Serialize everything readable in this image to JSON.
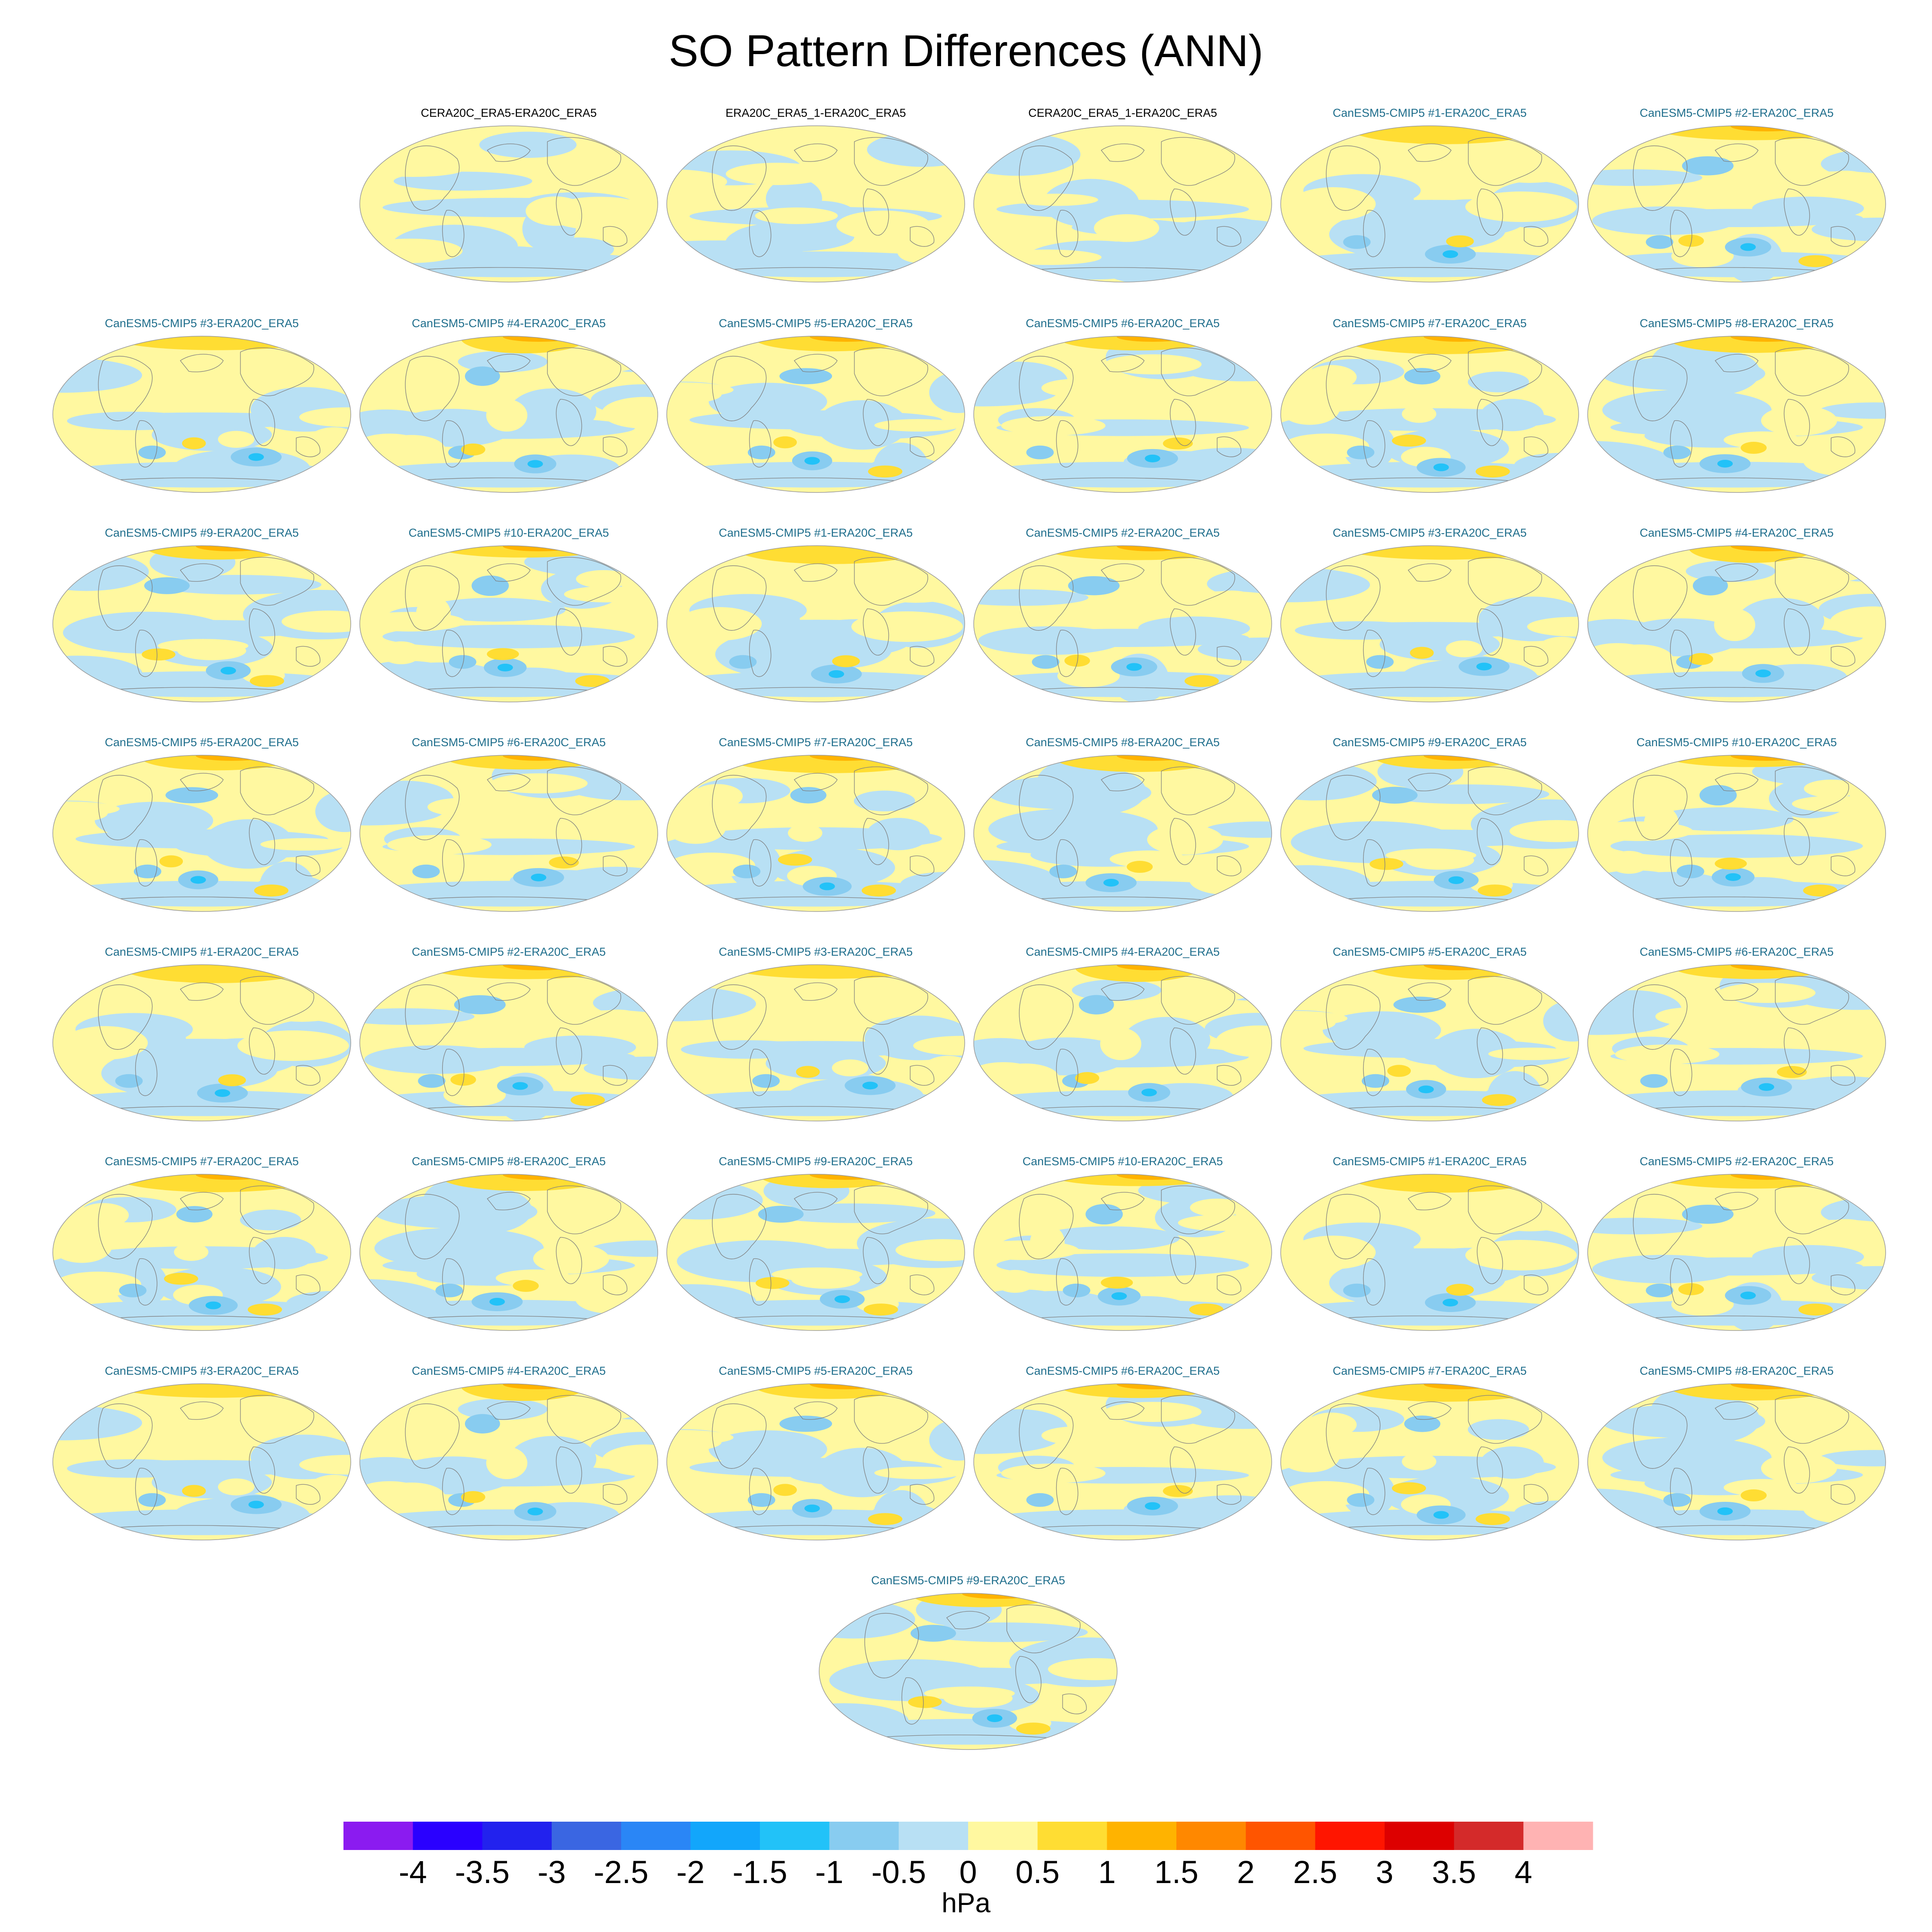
{
  "title": "SO Pattern Differences (ANN)",
  "colors": {
    "obs_title": "#000000",
    "model_title": "#1f6e8c",
    "land_outline": "#7f7f7f",
    "map_border": "#9a9a9a"
  },
  "panels": [
    {
      "title": "CERA20C_ERA5-ERA20C_ERA5",
      "kind": "obs",
      "pattern": 0
    },
    {
      "title": "ERA20C_ERA5_1-ERA20C_ERA5",
      "kind": "obs",
      "pattern": 1
    },
    {
      "title": "CERA20C_ERA5_1-ERA20C_ERA5",
      "kind": "obs",
      "pattern": 2
    },
    {
      "title": "CanESM5-CMIP5 #1-ERA20C_ERA5",
      "kind": "model",
      "pattern": 3
    },
    {
      "title": "CanESM5-CMIP5 #2-ERA20C_ERA5",
      "kind": "model",
      "pattern": 4
    },
    {
      "title": "CanESM5-CMIP5 #3-ERA20C_ERA5",
      "kind": "model",
      "pattern": 5
    },
    {
      "title": "CanESM5-CMIP5 #4-ERA20C_ERA5",
      "kind": "model",
      "pattern": 6
    },
    {
      "title": "CanESM5-CMIP5 #5-ERA20C_ERA5",
      "kind": "model",
      "pattern": 7
    },
    {
      "title": "CanESM5-CMIP5 #6-ERA20C_ERA5",
      "kind": "model",
      "pattern": 8
    },
    {
      "title": "CanESM5-CMIP5 #7-ERA20C_ERA5",
      "kind": "model",
      "pattern": 9
    },
    {
      "title": "CanESM5-CMIP5 #8-ERA20C_ERA5",
      "kind": "model",
      "pattern": 10
    },
    {
      "title": "CanESM5-CMIP5 #9-ERA20C_ERA5",
      "kind": "model",
      "pattern": 11
    },
    {
      "title": "CanESM5-CMIP5 #10-ERA20C_ERA5",
      "kind": "model",
      "pattern": 12
    },
    {
      "title": "CanESM5-CMIP5 #1-ERA20C_ERA5",
      "kind": "model",
      "pattern": 3
    },
    {
      "title": "CanESM5-CMIP5 #2-ERA20C_ERA5",
      "kind": "model",
      "pattern": 4
    },
    {
      "title": "CanESM5-CMIP5 #3-ERA20C_ERA5",
      "kind": "model",
      "pattern": 5
    },
    {
      "title": "CanESM5-CMIP5 #4-ERA20C_ERA5",
      "kind": "model",
      "pattern": 6
    },
    {
      "title": "CanESM5-CMIP5 #5-ERA20C_ERA5",
      "kind": "model",
      "pattern": 7
    },
    {
      "title": "CanESM5-CMIP5 #6-ERA20C_ERA5",
      "kind": "model",
      "pattern": 8
    },
    {
      "title": "CanESM5-CMIP5 #7-ERA20C_ERA5",
      "kind": "model",
      "pattern": 9
    },
    {
      "title": "CanESM5-CMIP5 #8-ERA20C_ERA5",
      "kind": "model",
      "pattern": 10
    },
    {
      "title": "CanESM5-CMIP5 #9-ERA20C_ERA5",
      "kind": "model",
      "pattern": 11
    },
    {
      "title": "CanESM5-CMIP5 #10-ERA20C_ERA5",
      "kind": "model",
      "pattern": 12
    },
    {
      "title": "CanESM5-CMIP5 #1-ERA20C_ERA5",
      "kind": "model",
      "pattern": 3
    },
    {
      "title": "CanESM5-CMIP5 #2-ERA20C_ERA5",
      "kind": "model",
      "pattern": 4
    },
    {
      "title": "CanESM5-CMIP5 #3-ERA20C_ERA5",
      "kind": "model",
      "pattern": 5
    },
    {
      "title": "CanESM5-CMIP5 #4-ERA20C_ERA5",
      "kind": "model",
      "pattern": 6
    },
    {
      "title": "CanESM5-CMIP5 #5-ERA20C_ERA5",
      "kind": "model",
      "pattern": 7
    },
    {
      "title": "CanESM5-CMIP5 #6-ERA20C_ERA5",
      "kind": "model",
      "pattern": 8
    },
    {
      "title": "CanESM5-CMIP5 #7-ERA20C_ERA5",
      "kind": "model",
      "pattern": 9
    },
    {
      "title": "CanESM5-CMIP5 #8-ERA20C_ERA5",
      "kind": "model",
      "pattern": 10
    },
    {
      "title": "CanESM5-CMIP5 #9-ERA20C_ERA5",
      "kind": "model",
      "pattern": 11
    },
    {
      "title": "CanESM5-CMIP5 #10-ERA20C_ERA5",
      "kind": "model",
      "pattern": 12
    },
    {
      "title": "CanESM5-CMIP5 #1-ERA20C_ERA5",
      "kind": "model",
      "pattern": 3
    },
    {
      "title": "CanESM5-CMIP5 #2-ERA20C_ERA5",
      "kind": "model",
      "pattern": 4
    },
    {
      "title": "CanESM5-CMIP5 #3-ERA20C_ERA5",
      "kind": "model",
      "pattern": 5
    },
    {
      "title": "CanESM5-CMIP5 #4-ERA20C_ERA5",
      "kind": "model",
      "pattern": 6
    },
    {
      "title": "CanESM5-CMIP5 #5-ERA20C_ERA5",
      "kind": "model",
      "pattern": 7
    },
    {
      "title": "CanESM5-CMIP5 #6-ERA20C_ERA5",
      "kind": "model",
      "pattern": 8
    },
    {
      "title": "CanESM5-CMIP5 #7-ERA20C_ERA5",
      "kind": "model",
      "pattern": 9
    },
    {
      "title": "CanESM5-CMIP5 #8-ERA20C_ERA5",
      "kind": "model",
      "pattern": 10
    },
    {
      "title": "CanESM5-CMIP5 #9-ERA20C_ERA5",
      "kind": "model",
      "pattern": 11
    }
  ],
  "colorbar": {
    "levels": [
      "-4",
      "-3.5",
      "-3",
      "-2.5",
      "-2",
      "-1.5",
      "-1",
      "-0.5",
      "0",
      "0.5",
      "1",
      "1.5",
      "2",
      "2.5",
      "3",
      "3.5",
      "4"
    ],
    "colors": [
      "#8b1bf0",
      "#2a00ff",
      "#2222ee",
      "#3a66e2",
      "#2a86f6",
      "#12a6fb",
      "#22c2f8",
      "#88ccf0",
      "#b8e0f4",
      "#fff8a0",
      "#ffdd33",
      "#ffb300",
      "#ff8800",
      "#ff5500",
      "#ff1500",
      "#dd0000",
      "#d42a2a",
      "#ffb3b3"
    ],
    "units": "hPa"
  },
  "chart_data": {
    "type": "heatmap",
    "title": "SO Pattern Differences (ANN)",
    "colorbar_units": "hPa",
    "colorbar_range": [
      -4,
      4
    ],
    "colorbar_step": 0.5,
    "panel_count": 42,
    "note": "Each panel is a global map (Hammer projection) of annual sea-level-pressure pattern differences; values mostly within -2 to 2 hPa."
  }
}
